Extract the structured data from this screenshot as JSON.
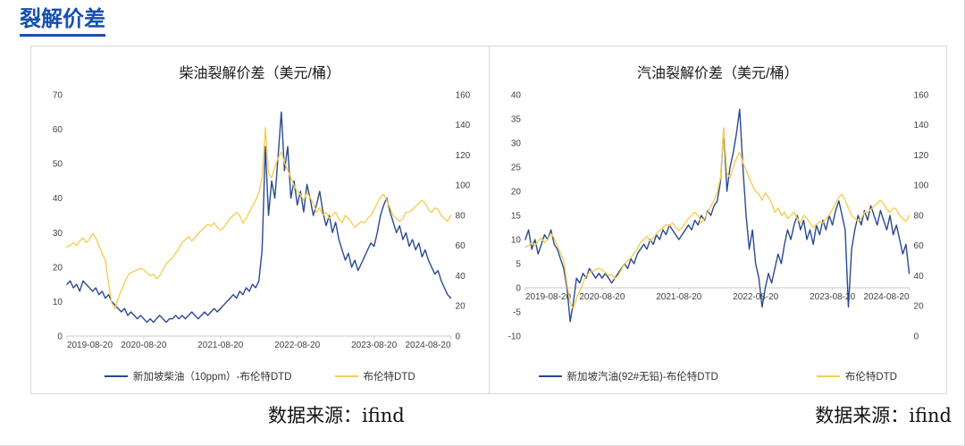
{
  "page": {
    "title": "裂解价差"
  },
  "colors": {
    "accent_blue": "#1550b0",
    "series_blue": "#2a4a8f",
    "series_yellow": "#f5ce55",
    "axis_gray": "#c9c9c9"
  },
  "captions": {
    "left": "数据来源：ifind",
    "right": "数据来源：ifind"
  },
  "chart_data": [
    {
      "type": "line",
      "title": "柴油裂解价差（美元/桶）",
      "x_ticks": [
        "2019-08-20",
        "2020-08-20",
        "2021-08-20",
        "2022-08-20",
        "2023-08-20",
        "2024-08-20"
      ],
      "y_left": {
        "min": 0,
        "max": 70,
        "step": 10
      },
      "y_right": {
        "min": 0,
        "max": 160,
        "step": 20
      },
      "legend_position": "bottom",
      "grid": false,
      "series": [
        {
          "name": "新加坡柴油（10ppm）-布伦特DTD",
          "axis": "left",
          "color": "#2a4a8f",
          "values": [
            15,
            16,
            14,
            15,
            13,
            16,
            15,
            14,
            13,
            14,
            12,
            13,
            11,
            12,
            10,
            9,
            8,
            7,
            8,
            6,
            7,
            6,
            5,
            6,
            5,
            4,
            5,
            4,
            5,
            6,
            5,
            4,
            5,
            5,
            6,
            5,
            6,
            5,
            6,
            7,
            6,
            5,
            6,
            7,
            6,
            7,
            8,
            7,
            8,
            9,
            10,
            11,
            12,
            11,
            13,
            12,
            14,
            13,
            15,
            14,
            16,
            25,
            55,
            35,
            45,
            40,
            52,
            65,
            48,
            55,
            40,
            45,
            38,
            42,
            36,
            44,
            40,
            35,
            38,
            42,
            36,
            32,
            35,
            30,
            33,
            28,
            25,
            22,
            24,
            20,
            22,
            19,
            21,
            23,
            25,
            27,
            26,
            30,
            35,
            38,
            40,
            36,
            33,
            30,
            32,
            28,
            30,
            26,
            28,
            25,
            27,
            23,
            25,
            22,
            20,
            18,
            19,
            16,
            14,
            12,
            11
          ]
        },
        {
          "name": "布伦特DTD",
          "axis": "right",
          "color": "#f5ce55",
          "values": [
            59,
            60,
            62,
            60,
            63,
            65,
            62,
            64,
            68,
            65,
            60,
            55,
            50,
            35,
            22,
            18,
            25,
            30,
            35,
            40,
            42,
            43,
            44,
            45,
            44,
            42,
            40,
            41,
            38,
            40,
            44,
            48,
            50,
            52,
            55,
            58,
            62,
            64,
            66,
            63,
            65,
            68,
            70,
            72,
            74,
            73,
            75,
            72,
            70,
            72,
            75,
            78,
            80,
            82,
            80,
            75,
            78,
            82,
            86,
            90,
            95,
            105,
            138,
            108,
            105,
            112,
            118,
            122,
            115,
            110,
            105,
            100,
            96,
            94,
            90,
            95,
            92,
            88,
            82,
            85,
            80,
            82,
            78,
            80,
            82,
            78,
            75,
            80,
            78,
            75,
            72,
            74,
            76,
            75,
            78,
            80,
            84,
            88,
            92,
            94,
            90,
            85,
            80,
            78,
            76,
            78,
            82,
            82,
            84,
            86,
            88,
            90,
            88,
            84,
            82,
            85,
            84,
            80,
            78,
            76,
            80
          ]
        }
      ]
    },
    {
      "type": "line",
      "title": "汽油裂解价差（美元/桶）",
      "x_ticks": [
        "2019-08-20",
        "2020-08-20",
        "2021-08-20",
        "2022-08-20",
        "2023-08-20",
        "2024-08-20"
      ],
      "y_left": {
        "min": -10,
        "max": 40,
        "step": 5
      },
      "y_right": {
        "min": 0,
        "max": 160,
        "step": 20
      },
      "legend_position": "bottom",
      "grid": false,
      "series": [
        {
          "name": "新加坡汽油(92#无铅)-布伦特DTD",
          "axis": "left",
          "color": "#2a4a8f",
          "values": [
            10,
            12,
            8,
            10,
            7,
            9,
            11,
            10,
            12,
            9,
            8,
            6,
            4,
            0,
            -7,
            -3,
            2,
            1,
            3,
            2,
            4,
            3,
            2,
            3,
            2,
            3,
            2,
            1,
            2,
            3,
            4,
            5,
            4,
            6,
            5,
            7,
            8,
            9,
            8,
            10,
            9,
            11,
            10,
            12,
            11,
            13,
            12,
            11,
            10,
            11,
            12,
            13,
            12,
            14,
            13,
            15,
            14,
            16,
            15,
            17,
            18,
            22,
            33,
            20,
            25,
            28,
            32,
            37,
            25,
            15,
            8,
            12,
            5,
            2,
            -4,
            0,
            3,
            1,
            4,
            7,
            5,
            9,
            12,
            10,
            13,
            15,
            12,
            14,
            10,
            12,
            9,
            13,
            11,
            14,
            12,
            15,
            13,
            16,
            18,
            15,
            12,
            -4,
            8,
            12,
            15,
            13,
            16,
            14,
            17,
            15,
            13,
            16,
            14,
            12,
            15,
            11,
            13,
            10,
            7,
            9,
            3
          ]
        },
        {
          "name": "布伦特DTD",
          "axis": "right",
          "color": "#f5ce55",
          "values": [
            59,
            60,
            62,
            60,
            63,
            65,
            62,
            64,
            68,
            65,
            60,
            55,
            50,
            35,
            22,
            18,
            25,
            30,
            35,
            40,
            42,
            43,
            44,
            45,
            44,
            42,
            40,
            41,
            38,
            40,
            44,
            48,
            50,
            52,
            55,
            58,
            62,
            64,
            66,
            63,
            65,
            68,
            70,
            72,
            74,
            73,
            75,
            72,
            70,
            72,
            75,
            78,
            80,
            82,
            80,
            75,
            78,
            82,
            86,
            90,
            95,
            105,
            138,
            108,
            105,
            112,
            118,
            122,
            115,
            110,
            105,
            100,
            96,
            94,
            90,
            95,
            92,
            88,
            82,
            85,
            80,
            82,
            78,
            80,
            82,
            78,
            75,
            80,
            78,
            75,
            72,
            74,
            76,
            75,
            78,
            80,
            84,
            88,
            92,
            94,
            90,
            85,
            80,
            78,
            76,
            78,
            82,
            82,
            84,
            86,
            88,
            90,
            88,
            84,
            82,
            85,
            84,
            80,
            78,
            76,
            80
          ]
        }
      ]
    }
  ]
}
